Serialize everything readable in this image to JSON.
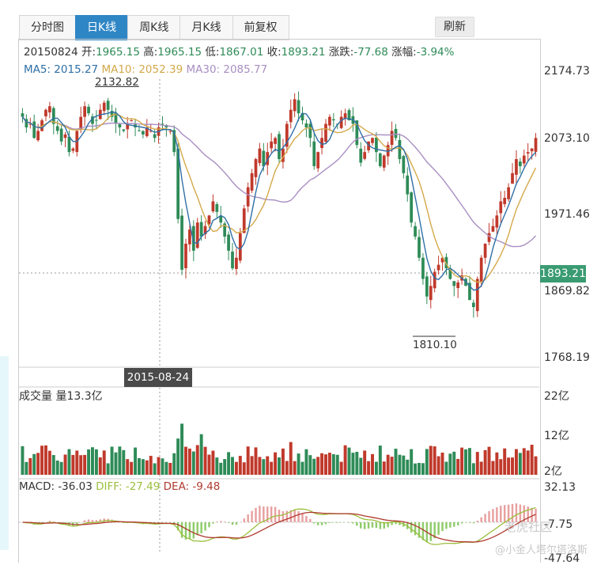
{
  "tabs": [
    {
      "label": "分时图"
    },
    {
      "label": "日K线"
    },
    {
      "label": "周K线"
    },
    {
      "label": "月K线"
    },
    {
      "label": "前复权"
    }
  ],
  "active_tab": "日K线",
  "refresh_label": "刷新",
  "info": {
    "date": "20150824",
    "open_label": "开:",
    "open": "1965.15",
    "high_label": "高:",
    "high": "1965.15",
    "low_label": "低:",
    "low": "1867.01",
    "close_label": "收:",
    "close": "1893.21",
    "change_label": "涨跌:",
    "change": "-77.68",
    "pct_label": "涨幅:",
    "pct": "-3.94%"
  },
  "ma": {
    "ma5": "MA5: 2015.27",
    "ma10": "MA10: 2052.39",
    "ma30": "MA30: 2085.77"
  },
  "volume": {
    "title": "成交量 量13.3亿"
  },
  "macd": {
    "label": "MACD: -36.03",
    "diff": "DIFF: -27.49",
    "dea": "DEA: -9.48"
  },
  "colors": {
    "up": "#c0392b",
    "down": "#2e8b57",
    "accent": "#2f86c5",
    "ma5": "#2f6fa6",
    "ma10": "#d4a94a",
    "ma30": "#a98fc2"
  },
  "watermark": {
    "a": "老虎社区",
    "b": "@小金人塔尔塔洛斯"
  },
  "chart_data": {
    "type": "candlestick",
    "price_axis": {
      "ticks": [
        "2174.73",
        "2073.10",
        "1971.46",
        "1869.82",
        "1768.19"
      ],
      "range": [
        1768.19,
        2174.73
      ]
    },
    "current_price": "1893.21",
    "crosshair_date": "2015-08-24",
    "max_label": "2132.82",
    "min_label": "1810.10",
    "volume_axis": {
      "ticks": [
        "22亿",
        "12亿",
        "2亿"
      ],
      "range": [
        2,
        22
      ],
      "unit": "亿"
    },
    "macd_axis": {
      "ticks": [
        "32.13",
        "-7.75",
        "-47.64"
      ],
      "range": [
        -47.64,
        32.13
      ]
    },
    "close_approx": [
      2110,
      2095,
      2100,
      2080,
      2090,
      2105,
      2120,
      2125,
      2100,
      2090,
      2075,
      2085,
      2060,
      2065,
      2090,
      2110,
      2125,
      2115,
      2100,
      2105,
      2120,
      2130,
      2120,
      2110,
      2100,
      2095,
      2090,
      2100,
      2105,
      2095,
      2090,
      2085,
      2095,
      2090,
      2080,
      2095,
      2100,
      2095,
      2090,
      2060,
      1965,
      1893,
      1930,
      1950,
      1920,
      1960,
      1940,
      1955,
      1970,
      1990,
      1975,
      1960,
      1940,
      1920,
      1895,
      1910,
      1945,
      1980,
      2010,
      2030,
      2050,
      2065,
      2040,
      2060,
      2075,
      2080,
      2050,
      2065,
      2100,
      2120,
      2135,
      2115,
      2105,
      2095,
      2080,
      2040,
      2060,
      2080,
      2100,
      2110,
      2105,
      2100,
      2110,
      2115,
      2105,
      2100,
      2070,
      2045,
      2060,
      2075,
      2080,
      2060,
      2040,
      2055,
      2070,
      2090,
      2080,
      2050,
      2030,
      2000,
      1960,
      1940,
      1910,
      1880,
      1855,
      1870,
      1890,
      1900,
      1910,
      1895,
      1880,
      1870,
      1875,
      1885,
      1870,
      1850,
      1840,
      1880,
      1910,
      1930,
      1945,
      1955,
      1970,
      1990,
      1995,
      2010,
      2030,
      2050,
      2040,
      2055,
      2060,
      2065,
      2080
    ],
    "macd_diff_approx": [],
    "macd_dea_approx": []
  }
}
